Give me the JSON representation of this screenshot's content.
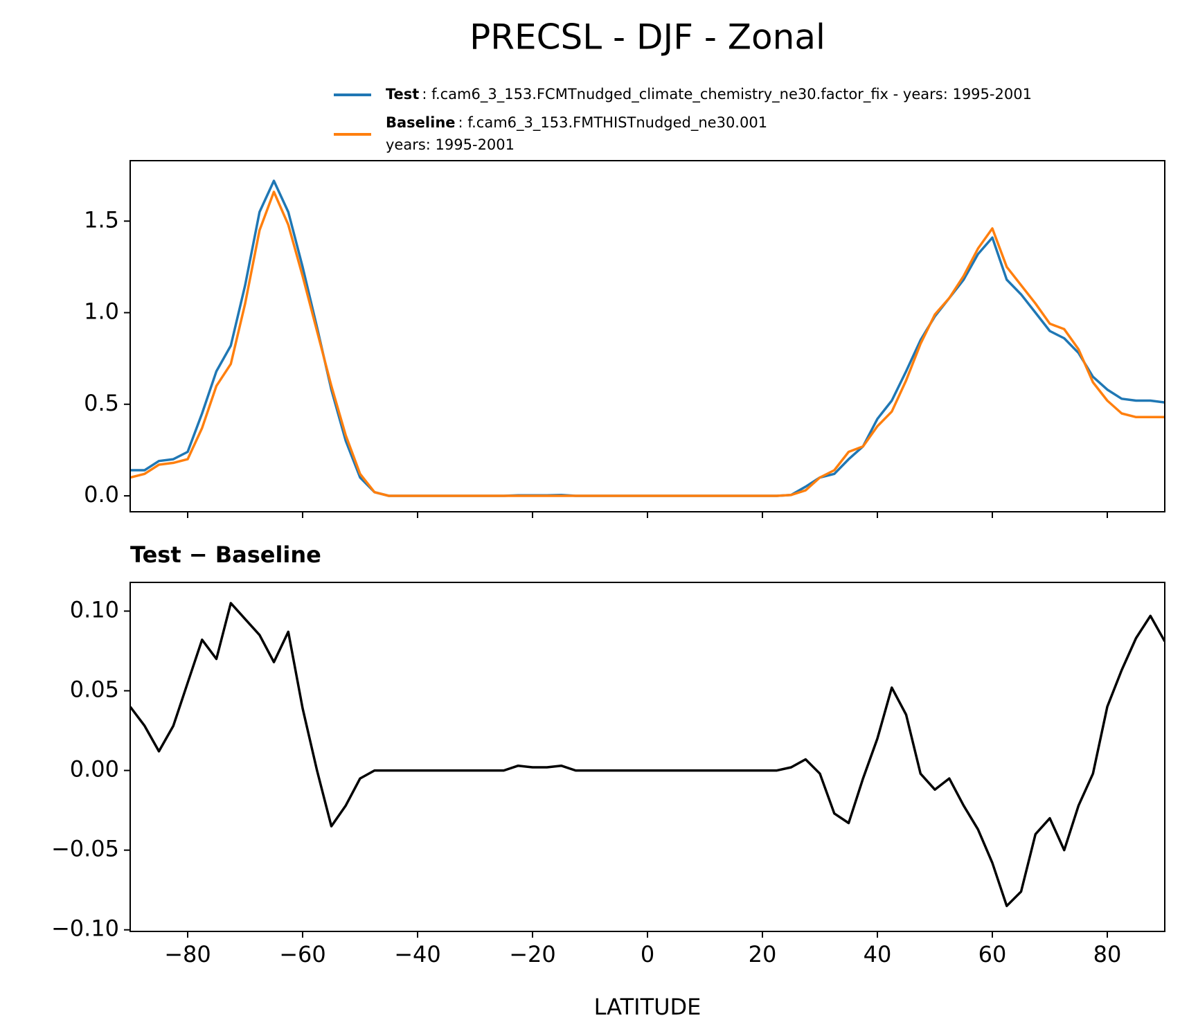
{
  "chart_data": [
    {
      "type": "line",
      "title": "PRECSL - DJF - Zonal",
      "x": [
        -90,
        -87.5,
        -85,
        -82.5,
        -80,
        -77.5,
        -75,
        -72.5,
        -70,
        -67.5,
        -65,
        -62.5,
        -60,
        -57.5,
        -55,
        -52.5,
        -50,
        -47.5,
        -45,
        -42.5,
        -40,
        -37.5,
        -35,
        -32.5,
        -30,
        -27.5,
        -25,
        -22.5,
        -20,
        -17.5,
        -15,
        -12.5,
        -10,
        -7.5,
        -5,
        -2.5,
        0,
        2.5,
        5,
        7.5,
        10,
        12.5,
        15,
        17.5,
        20,
        22.5,
        25,
        27.5,
        30,
        32.5,
        35,
        37.5,
        40,
        42.5,
        45,
        47.5,
        50,
        52.5,
        55,
        57.5,
        60,
        62.5,
        65,
        67.5,
        70,
        72.5,
        75,
        77.5,
        80,
        82.5,
        85,
        87.5,
        90
      ],
      "series": [
        {
          "name": "Test",
          "description": ": f.cam6_3_153.FCMTnudged_climate_chemistry_ne30.factor_fix - years: 1995-2001",
          "color": "#1f77b4",
          "values": [
            0.14,
            0.14,
            0.19,
            0.2,
            0.24,
            0.45,
            0.68,
            0.82,
            1.15,
            1.55,
            1.72,
            1.55,
            1.25,
            0.92,
            0.58,
            0.3,
            0.1,
            0.02,
            0,
            0,
            0,
            0,
            0,
            0,
            0,
            0,
            0,
            0.003,
            0.003,
            0.003,
            0.005,
            0,
            0,
            0,
            0,
            0,
            0,
            0,
            0,
            0,
            0,
            0,
            0,
            0,
            0,
            0,
            0.005,
            0.05,
            0.1,
            0.12,
            0.2,
            0.27,
            0.42,
            0.52,
            0.68,
            0.85,
            0.98,
            1.08,
            1.18,
            1.32,
            1.41,
            1.18,
            1.1,
            1.0,
            0.9,
            0.86,
            0.78,
            0.65,
            0.58,
            0.53,
            0.52,
            0.52,
            0.51
          ]
        },
        {
          "name": "Baseline",
          "description": ": f.cam6_3_153.FMTHISTnudged_ne30.001",
          "description2": "years: 1995-2001",
          "color": "#ff7f0e",
          "values": [
            0.1,
            0.12,
            0.17,
            0.18,
            0.2,
            0.37,
            0.6,
            0.72,
            1.05,
            1.45,
            1.66,
            1.48,
            1.2,
            0.9,
            0.6,
            0.33,
            0.12,
            0.02,
            0,
            0,
            0,
            0,
            0,
            0,
            0,
            0,
            0,
            0,
            0,
            0,
            0,
            0,
            0,
            0,
            0,
            0,
            0,
            0,
            0,
            0,
            0,
            0,
            0,
            0,
            0,
            0,
            0.005,
            0.03,
            0.1,
            0.14,
            0.24,
            0.27,
            0.38,
            0.46,
            0.63,
            0.83,
            0.99,
            1.08,
            1.2,
            1.35,
            1.46,
            1.25,
            1.15,
            1.05,
            0.94,
            0.91,
            0.8,
            0.62,
            0.52,
            0.45,
            0.43,
            0.43,
            0.43
          ]
        }
      ],
      "xlim": [
        -90,
        90
      ],
      "xticks": [
        -80,
        -60,
        -40,
        -20,
        0,
        20,
        40,
        60,
        80
      ],
      "ylim": [
        -0.087,
        1.83
      ],
      "yticks": [
        {
          "value": 0,
          "label": "0.0"
        },
        0.5,
        {
          "value": 1,
          "label": "1.0"
        },
        1.5
      ]
    },
    {
      "type": "line",
      "title": "Test − Baseline",
      "xlabel": "LATITUDE",
      "x": [
        -90,
        -87.5,
        -85,
        -82.5,
        -80,
        -77.5,
        -75,
        -72.5,
        -70,
        -67.5,
        -65,
        -62.5,
        -60,
        -57.5,
        -55,
        -52.5,
        -50,
        -47.5,
        -45,
        -42.5,
        -40,
        -37.5,
        -35,
        -32.5,
        -30,
        -27.5,
        -25,
        -22.5,
        -20,
        -17.5,
        -15,
        -12.5,
        -10,
        -7.5,
        -5,
        -2.5,
        0,
        2.5,
        5,
        7.5,
        10,
        12.5,
        15,
        17.5,
        20,
        22.5,
        25,
        27.5,
        30,
        32.5,
        35,
        37.5,
        40,
        42.5,
        45,
        47.5,
        50,
        52.5,
        55,
        57.5,
        60,
        62.5,
        65,
        67.5,
        70,
        72.5,
        75,
        77.5,
        80,
        82.5,
        85,
        87.5,
        90
      ],
      "series": [
        {
          "color": "#000000",
          "values": [
            0.04,
            0.028,
            0.012,
            0.028,
            0.055,
            0.082,
            0.07,
            0.105,
            0.095,
            0.085,
            0.068,
            0.087,
            0.039,
            0,
            -0.035,
            -0.022,
            -0.005,
            0,
            0,
            0,
            0,
            0,
            0,
            0,
            0,
            0,
            0,
            0.003,
            0.002,
            0.002,
            0.003,
            0,
            0,
            0,
            0,
            0,
            0,
            0,
            0,
            0,
            0,
            0,
            0,
            0,
            0,
            0,
            0.002,
            0.007,
            -0.002,
            -0.027,
            -0.033,
            -0.005,
            0.02,
            0.052,
            0.035,
            -0.002,
            -0.012,
            -0.005,
            -0.022,
            -0.037,
            -0.058,
            -0.085,
            -0.076,
            -0.04,
            -0.03,
            -0.05,
            -0.022,
            -0.002,
            0.04,
            0.063,
            0.083,
            0.097,
            0.081
          ]
        }
      ],
      "xlim": [
        -90,
        90
      ],
      "xticks": [
        {
          "value": -80,
          "label": "−80"
        },
        {
          "value": -60,
          "label": "−60"
        },
        {
          "value": -40,
          "label": "−40"
        },
        {
          "value": -20,
          "label": "−20"
        },
        0,
        20,
        40,
        60,
        80
      ],
      "ylim": [
        -0.101,
        0.118
      ],
      "yticks": [
        {
          "value": -0.1,
          "label": "−0.10"
        },
        {
          "value": -0.05,
          "label": "−0.05"
        },
        {
          "value": 0,
          "label": "0.00"
        },
        0.05,
        {
          "value": 0.1,
          "label": "0.10"
        }
      ]
    }
  ]
}
